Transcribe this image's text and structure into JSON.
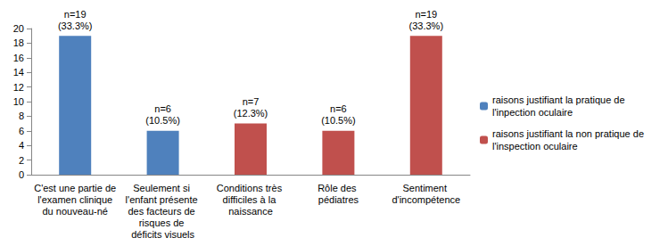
{
  "chart_data": {
    "type": "bar",
    "categories": [
      "C'est une partie de l'examen clinique du nouveau-né",
      "Seulement si l'enfant présente des facteurs de risques de déficits visuels",
      "Conditions très difficiles à la naissance",
      "Rôle des pédiatres",
      "Sentiment d'incompétence"
    ],
    "series": [
      {
        "name": "raisons justifiant la pratique de l'inpection oculaire",
        "color": "#4f81bd",
        "values": [
          19,
          6,
          null,
          null,
          null
        ],
        "value_labels": [
          "n=19\n(33.3%)",
          "n=6\n(10.5%)",
          null,
          null,
          null
        ]
      },
      {
        "name": "raisons justifiant la non pratique de l'inspection oculaire",
        "color": "#c0504d",
        "values": [
          null,
          null,
          7,
          6,
          19
        ],
        "value_labels": [
          null,
          null,
          "n=7\n(12.3%)",
          "n=6\n(10.5%)",
          "n=19\n(33.3%)"
        ]
      }
    ],
    "ylim": [
      0,
      20
    ],
    "yticks": [
      0,
      2,
      4,
      6,
      8,
      10,
      12,
      14,
      16,
      18,
      20
    ],
    "grid": false,
    "legend": "right",
    "data_labels": true
  }
}
